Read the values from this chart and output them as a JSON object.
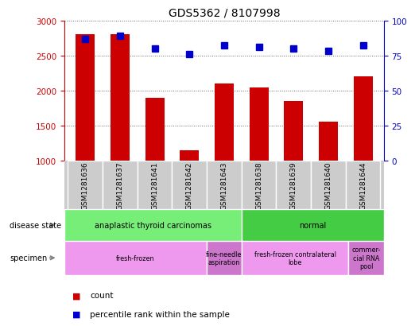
{
  "title": "GDS5362 / 8107998",
  "samples": [
    "GSM1281636",
    "GSM1281637",
    "GSM1281641",
    "GSM1281642",
    "GSM1281643",
    "GSM1281638",
    "GSM1281639",
    "GSM1281640",
    "GSM1281644"
  ],
  "counts": [
    2800,
    2800,
    1900,
    1150,
    2100,
    2050,
    1850,
    1560,
    2200
  ],
  "percentile_ranks": [
    87,
    89,
    80,
    76,
    82,
    81,
    80,
    78,
    82
  ],
  "ylim_left": [
    1000,
    3000
  ],
  "ylim_right": [
    0,
    100
  ],
  "yticks_left": [
    1000,
    1500,
    2000,
    2500,
    3000
  ],
  "yticks_right": [
    0,
    25,
    50,
    75,
    100
  ],
  "disease_state_groups": [
    {
      "label": "anaplastic thyroid carcinomas",
      "start": 0,
      "end": 5,
      "color": "#77ee77"
    },
    {
      "label": "normal",
      "start": 5,
      "end": 9,
      "color": "#44cc44"
    }
  ],
  "specimen_groups": [
    {
      "label": "fresh-frozen",
      "start": 0,
      "end": 4,
      "color": "#ee99ee"
    },
    {
      "label": "fine-needle\naspiration",
      "start": 4,
      "end": 5,
      "color": "#cc77cc"
    },
    {
      "label": "fresh-frozen contralateral\nlobe",
      "start": 5,
      "end": 8,
      "color": "#ee99ee"
    },
    {
      "label": "commer-\ncial RNA\npool",
      "start": 8,
      "end": 9,
      "color": "#cc77cc"
    }
  ],
  "bar_color": "#cc0000",
  "dot_color": "#0000cc",
  "grid_color": "#666666",
  "tick_color_left": "#cc0000",
  "tick_color_right": "#0000cc",
  "sample_bg_color": "#cccccc",
  "legend_items": [
    {
      "label": "count",
      "color": "#cc0000"
    },
    {
      "label": "percentile rank within the sample",
      "color": "#0000cc"
    }
  ]
}
